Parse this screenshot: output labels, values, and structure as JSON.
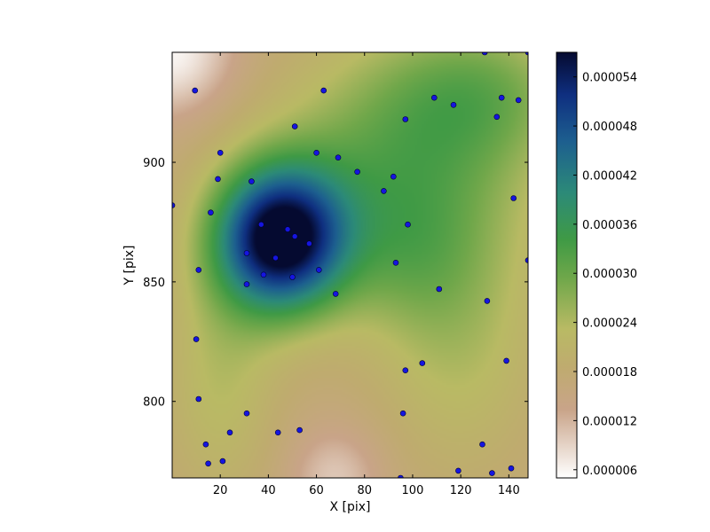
{
  "chart_data": {
    "type": "heatmap",
    "title": "",
    "xlabel": "X [pix]",
    "ylabel": "Y [pix]",
    "xlim": [
      0,
      148
    ],
    "ylim": [
      768,
      946
    ],
    "x_ticks": [
      20,
      40,
      60,
      80,
      100,
      120,
      140
    ],
    "y_ticks": [
      800,
      850,
      900
    ],
    "colormap": "gist_earth_r",
    "colorbar": {
      "range": [
        5e-06,
        5.7e-05
      ],
      "ticks": [
        "0.000006",
        "0.000012",
        "0.000018",
        "0.000024",
        "0.000030",
        "0.000036",
        "0.000042",
        "0.000048",
        "0.000054"
      ],
      "tick_values": [
        6e-06,
        1.2e-05,
        1.8e-05,
        2.4e-05,
        3e-05,
        3.6e-05,
        4.2e-05,
        4.8e-05,
        5.4e-05
      ]
    },
    "peak": {
      "x": 45,
      "y": 868
    },
    "grid": false,
    "points": [
      [
        0,
        882
      ],
      [
        9.5,
        930
      ],
      [
        11,
        855
      ],
      [
        10,
        826
      ],
      [
        11,
        801
      ],
      [
        14,
        782
      ],
      [
        15,
        774
      ],
      [
        16,
        879
      ],
      [
        19,
        893
      ],
      [
        20,
        904
      ],
      [
        21,
        775
      ],
      [
        24,
        787
      ],
      [
        31,
        862
      ],
      [
        31,
        849
      ],
      [
        31,
        795
      ],
      [
        33,
        892
      ],
      [
        37,
        874
      ],
      [
        38,
        853
      ],
      [
        43,
        860
      ],
      [
        44,
        787
      ],
      [
        48,
        872
      ],
      [
        50,
        852
      ],
      [
        51,
        869
      ],
      [
        51,
        915
      ],
      [
        53,
        788
      ],
      [
        57,
        866
      ],
      [
        60,
        904
      ],
      [
        61,
        855
      ],
      [
        63,
        930
      ],
      [
        68,
        845
      ],
      [
        69,
        902
      ],
      [
        77,
        896
      ],
      [
        88,
        888
      ],
      [
        92,
        894
      ],
      [
        93,
        858
      ],
      [
        95,
        768
      ],
      [
        96,
        795
      ],
      [
        97,
        918
      ],
      [
        97,
        813
      ],
      [
        98,
        874
      ],
      [
        104,
        816
      ],
      [
        109,
        927
      ],
      [
        111,
        847
      ],
      [
        117,
        924
      ],
      [
        119,
        771
      ],
      [
        129,
        782
      ],
      [
        130,
        946
      ],
      [
        131,
        842
      ],
      [
        133,
        770
      ],
      [
        135,
        919
      ],
      [
        137,
        927
      ],
      [
        139,
        817
      ],
      [
        141,
        772
      ],
      [
        142,
        885
      ],
      [
        144,
        926
      ],
      [
        148,
        946
      ],
      [
        148,
        859
      ]
    ]
  }
}
